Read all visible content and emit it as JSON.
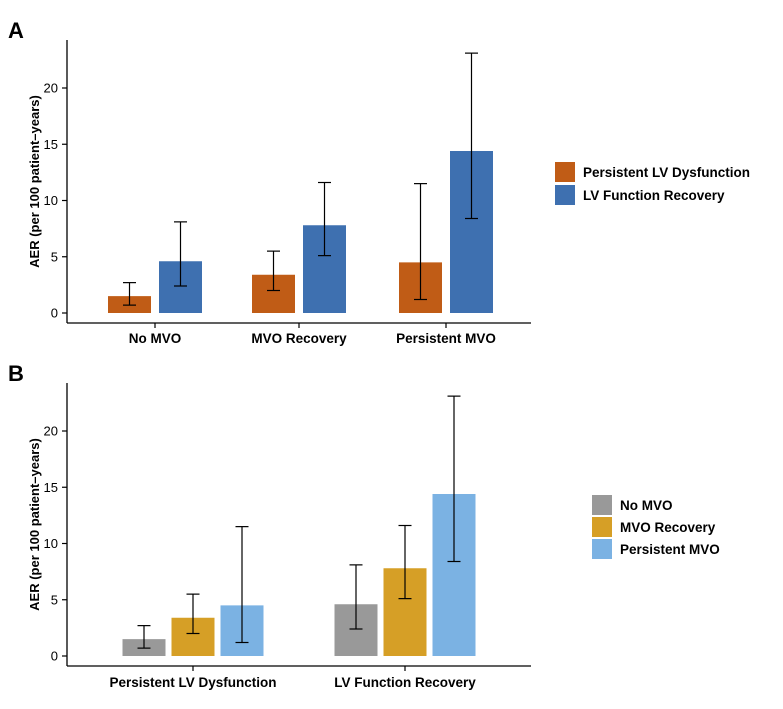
{
  "chart_data": [
    {
      "panel": "A",
      "type": "bar",
      "ylabel": "AER (per 100 patient–years)",
      "xlabel": "",
      "ylim": [
        0,
        23.5
      ],
      "yticks": [
        0,
        5,
        10,
        15,
        20
      ],
      "categories": [
        "No MVO",
        "MVO Recovery",
        "Persistent MVO"
      ],
      "series": [
        {
          "name": "Persistent LV Dysfunction",
          "color": "#C05C16",
          "values": [
            1.5,
            3.4,
            4.5
          ],
          "ci_low": [
            0.7,
            2.0,
            1.2
          ],
          "ci_high": [
            2.7,
            5.5,
            11.5
          ]
        },
        {
          "name": "LV Function Recovery",
          "color": "#3E70B0",
          "values": [
            4.6,
            7.8,
            14.4
          ],
          "ci_low": [
            2.4,
            5.1,
            8.4
          ],
          "ci_high": [
            8.1,
            11.6,
            23.1
          ]
        }
      ],
      "legend_position": "right"
    },
    {
      "panel": "B",
      "type": "bar",
      "ylabel": "AER (per 100 patient–years)",
      "xlabel": "",
      "ylim": [
        0,
        23.5
      ],
      "yticks": [
        0,
        5,
        10,
        15,
        20
      ],
      "categories": [
        "Persistent LV Dysfunction",
        "LV Function Recovery"
      ],
      "series": [
        {
          "name": "No MVO",
          "color": "#999999",
          "values": [
            1.5,
            4.6
          ],
          "ci_low": [
            0.7,
            2.4
          ],
          "ci_high": [
            2.7,
            8.1
          ]
        },
        {
          "name": "MVO Recovery",
          "color": "#D69F26",
          "values": [
            3.4,
            7.8
          ],
          "ci_low": [
            2.0,
            5.1
          ],
          "ci_high": [
            5.5,
            11.6
          ]
        },
        {
          "name": "Persistent MVO",
          "color": "#7BB2E3",
          "values": [
            4.5,
            14.4
          ],
          "ci_low": [
            1.2,
            8.4
          ],
          "ci_high": [
            11.5,
            23.1
          ]
        }
      ],
      "legend_position": "right"
    }
  ]
}
